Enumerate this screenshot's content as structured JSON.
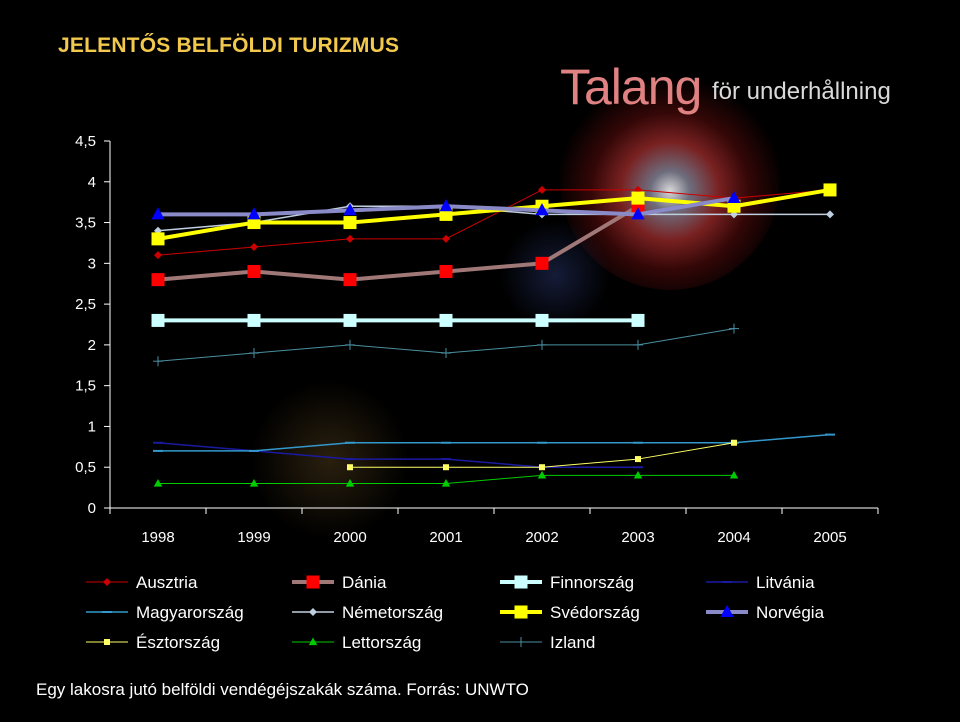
{
  "header": {
    "title": "JELENTŐS BELFÖLDI TURIZMUS",
    "brand_main": "Talang",
    "brand_sub": "för underhållning"
  },
  "caption": "Egy lakosra jutó belföldi vendégéjszakák száma. Forrás: UNWTO",
  "chart_data": {
    "type": "line",
    "categories": [
      "1998",
      "1999",
      "2000",
      "2001",
      "2002",
      "2003",
      "2004",
      "2005"
    ],
    "ylim": [
      0,
      4.5
    ],
    "yticks": [
      "0",
      "0,5",
      "1",
      "1,5",
      "2",
      "2,5",
      "3",
      "3,5",
      "4",
      "4,5"
    ],
    "grid": false,
    "legend_position": "bottom",
    "series": [
      {
        "name": "Ausztria",
        "color": "#CC0000",
        "marker": "diamond",
        "size": 4,
        "width": 1,
        "values": [
          3.1,
          3.2,
          3.3,
          3.3,
          3.9,
          3.9,
          3.8,
          3.9
        ]
      },
      {
        "name": "Dánia",
        "color": "#FF0000",
        "marker": "square",
        "size": 12,
        "width": 4,
        "lineColor": "#A07878",
        "values": [
          2.8,
          2.9,
          2.8,
          2.9,
          3.0,
          3.7,
          null,
          null
        ]
      },
      {
        "name": "Finnország",
        "color": "#CCFFFF",
        "marker": "square",
        "size": 12,
        "width": 4,
        "values": [
          2.3,
          2.3,
          2.3,
          2.3,
          2.3,
          2.3,
          null,
          null
        ]
      },
      {
        "name": "Litvánia",
        "color": "#1A1AA0",
        "marker": "dash",
        "size": 5,
        "width": 1.5,
        "values": [
          0.8,
          0.7,
          0.6,
          0.6,
          0.5,
          0.5,
          null,
          null
        ]
      },
      {
        "name": "Magyarország",
        "color": "#3399CC",
        "marker": "dash",
        "size": 5,
        "width": 1.5,
        "values": [
          0.7,
          0.7,
          0.8,
          0.8,
          0.8,
          0.8,
          0.8,
          0.9
        ]
      },
      {
        "name": "Németország",
        "color": "#BFCFDF",
        "marker": "diamond",
        "size": 4,
        "width": 1.5,
        "values": [
          3.4,
          3.5,
          3.7,
          3.7,
          3.6,
          3.6,
          3.6,
          3.6
        ]
      },
      {
        "name": "Svédország",
        "color": "#FFFF00",
        "marker": "square",
        "size": 12,
        "width": 4,
        "values": [
          3.3,
          3.5,
          3.5,
          3.6,
          3.7,
          3.8,
          3.7,
          3.9
        ]
      },
      {
        "name": "Norvégia",
        "color": "#0000FF",
        "marker": "triangle",
        "size": 11,
        "width": 4,
        "lineColor": "#8A8AC8",
        "values": [
          3.6,
          3.6,
          3.65,
          3.7,
          3.65,
          3.6,
          3.8,
          null
        ]
      },
      {
        "name": "Észtország",
        "color": "#FFFF66",
        "marker": "square",
        "size": 5,
        "width": 1,
        "values": [
          null,
          null,
          0.5,
          0.5,
          0.5,
          0.6,
          0.8,
          null
        ]
      },
      {
        "name": "Lettország",
        "color": "#00CC00",
        "marker": "triangle",
        "size": 7,
        "width": 1,
        "values": [
          0.3,
          0.3,
          0.3,
          0.3,
          0.4,
          0.4,
          0.4,
          null
        ]
      },
      {
        "name": "Izland",
        "color": "#4A8FA0",
        "marker": "plus",
        "size": 5,
        "width": 1,
        "values": [
          1.8,
          1.9,
          2.0,
          1.9,
          2.0,
          2.0,
          2.2,
          null
        ]
      }
    ]
  }
}
